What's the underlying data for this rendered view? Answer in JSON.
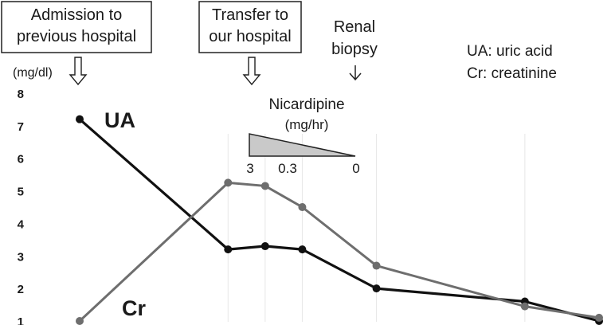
{
  "chart_data": {
    "type": "line",
    "ylabel": "(mg/dl)",
    "ylim": [
      1,
      8
    ],
    "yticks": [
      1,
      2,
      3,
      4,
      5,
      6,
      7,
      8
    ],
    "grid": {
      "x": true,
      "y": false
    },
    "x": [
      1,
      2,
      3,
      4,
      5,
      6,
      7,
      8
    ],
    "series": [
      {
        "name": "UA",
        "color": "#111111",
        "values": [
          7.2,
          3.2,
          3.3,
          3.2,
          2.0,
          1.6,
          1.0
        ],
        "x": [
          1,
          3,
          3.5,
          4,
          5,
          7,
          8
        ]
      },
      {
        "name": "Cr",
        "color": "#6e6e6e",
        "values": [
          1.0,
          5.25,
          5.15,
          4.5,
          2.7,
          1.45,
          1.1
        ],
        "x": [
          1,
          3,
          3.5,
          4,
          5,
          7,
          8
        ]
      }
    ],
    "legend_note": [
      "UA: uric acid",
      "Cr: creatinine"
    ],
    "annotations": {
      "admission": "Admission to\nprevious hospital",
      "transfer": "Transfer to\nour hospital",
      "biopsy": "Renal\nbiopsy",
      "nicardipine_title": "Nicardipine",
      "nicardipine_unit": "(mg/hr)",
      "nicardipine_doses": [
        "3",
        "0.3",
        "0"
      ]
    }
  }
}
